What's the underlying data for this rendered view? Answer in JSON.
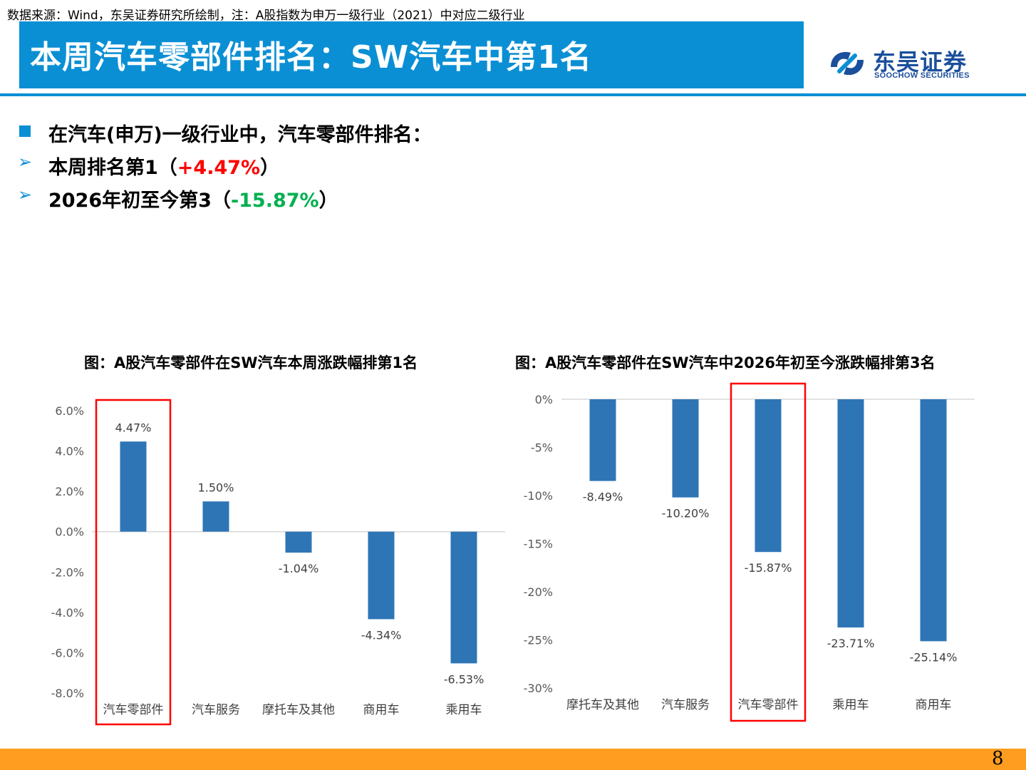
{
  "header": {
    "title": "本周汽车零部件排名：SW汽车中第1名",
    "logo_cn": "东吴证券",
    "logo_en": "SOOCHOW SECURITIES"
  },
  "bullets": {
    "b1": "在汽车(申万)一级行业中，汽车零部件排名：",
    "b2_prefix": "本周排名第1（",
    "b2_value": "+4.47%",
    "b2_suffix": "）",
    "b3_prefix": "2026年初至今第3（",
    "b3_value": "-15.87%",
    "b3_suffix": "）"
  },
  "colors": {
    "bar": "#2e75b6",
    "highlight_box": "#ff0000",
    "title_bar": "#0b8fd4",
    "footer": "#ff9d21",
    "positive": "#ff0000",
    "negative": "#00b050"
  },
  "chart_data": [
    {
      "type": "bar",
      "title": "图：A股汽车零部件在SW汽车本周涨跌幅排第1名",
      "categories": [
        "汽车零部件",
        "汽车服务",
        "摩托车及其他",
        "商用车",
        "乘用车"
      ],
      "values": [
        4.47,
        1.5,
        -1.04,
        -4.34,
        -6.53
      ],
      "labels": [
        "4.47%",
        "1.50%",
        "-1.04%",
        "-4.34%",
        "-6.53%"
      ],
      "yticks": [
        6,
        4,
        2,
        0,
        -2,
        -4,
        -6,
        -8
      ],
      "ytick_labels": [
        "6.0%",
        "4.0%",
        "2.0%",
        "0.0%",
        "-2.0%",
        "-4.0%",
        "-6.0%",
        "-8.0%"
      ],
      "ylim": [
        -8,
        6
      ],
      "highlight_index": 0,
      "grid": false
    },
    {
      "type": "bar",
      "title": "图：A股汽车零部件在SW汽车中2026年初至今涨跌幅排第3名",
      "categories": [
        "摩托车及其他",
        "汽车服务",
        "汽车零部件",
        "乘用车",
        "商用车"
      ],
      "values": [
        -8.49,
        -10.2,
        -15.87,
        -23.71,
        -25.14
      ],
      "labels": [
        "-8.49%",
        "-10.20%",
        "-15.87%",
        "-23.71%",
        "-25.14%"
      ],
      "yticks": [
        0,
        -5,
        -10,
        -15,
        -20,
        -25,
        -30
      ],
      "ytick_labels": [
        "0%",
        "-5%",
        "-10%",
        "-15%",
        "-20%",
        "-25%",
        "-30%"
      ],
      "ylim": [
        -30,
        0
      ],
      "highlight_index": 2,
      "grid": false
    }
  ],
  "footer": {
    "source": "数据来源：Wind，东吴证券研究所绘制，注：A股指数为申万一级行业（2021）中对应二级行业",
    "page": "8"
  }
}
